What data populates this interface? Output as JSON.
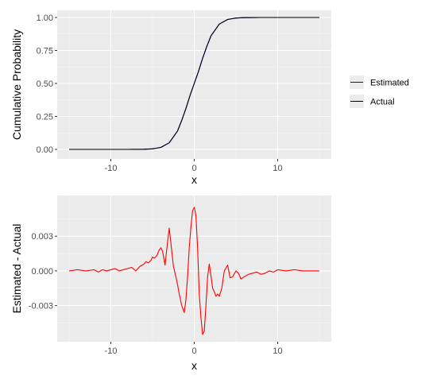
{
  "chart_data": [
    {
      "type": "line",
      "xlabel": "x",
      "ylabel": "Cumulative Probability",
      "xlim": [
        -15,
        15
      ],
      "ylim": [
        0,
        1
      ],
      "xticks": [
        -10,
        0,
        10
      ],
      "xtick_labels": [
        "-10",
        "0",
        "10"
      ],
      "yticks": [
        0,
        0.25,
        0.5,
        0.75,
        1
      ],
      "ytick_labels": [
        "0.00",
        "0.25",
        "0.50",
        "0.75",
        "1.00"
      ],
      "grid": true,
      "legend_position": "right",
      "x": [
        -15,
        -10,
        -8,
        -6,
        -5,
        -4,
        -3,
        -2,
        -1.5,
        -1,
        -0.5,
        0,
        0.5,
        1,
        1.5,
        2,
        3,
        4,
        5,
        6,
        8,
        10,
        15
      ],
      "series": [
        {
          "name": "Estimated",
          "color": "#0000ff",
          "values": [
            0.0,
            0.0,
            0.0,
            0.001,
            0.004,
            0.015,
            0.05,
            0.14,
            0.22,
            0.31,
            0.41,
            0.5,
            0.59,
            0.69,
            0.78,
            0.86,
            0.95,
            0.985,
            0.996,
            0.999,
            1.0,
            1.0,
            1.0
          ]
        },
        {
          "name": "Actual",
          "color": "#000000",
          "values": [
            0.0,
            0.0,
            0.0,
            0.001,
            0.004,
            0.015,
            0.05,
            0.14,
            0.22,
            0.31,
            0.41,
            0.5,
            0.59,
            0.69,
            0.78,
            0.86,
            0.95,
            0.985,
            0.996,
            0.999,
            1.0,
            1.0,
            1.0
          ]
        }
      ]
    },
    {
      "type": "line",
      "xlabel": "x",
      "ylabel": "Estimated - Actual",
      "xlim": [
        -15,
        15
      ],
      "ylim": [
        -0.0055,
        0.0059
      ],
      "xticks": [
        -10,
        0,
        10
      ],
      "xtick_labels": [
        "-10",
        "0",
        "10"
      ],
      "yticks": [
        -0.003,
        0,
        0.003
      ],
      "ytick_labels": [
        "-0.003",
        "0.000",
        "0.003"
      ],
      "grid": true,
      "series": [
        {
          "name": "",
          "color": "#ff0000",
          "x": [
            -15,
            -14,
            -13,
            -12,
            -11.5,
            -11,
            -10.5,
            -10,
            -9.5,
            -9,
            -8.5,
            -8,
            -7.5,
            -7,
            -6.5,
            -6,
            -5.8,
            -5.5,
            -5.2,
            -5,
            -4.8,
            -4.5,
            -4.2,
            -4,
            -3.8,
            -3.5,
            -3.2,
            -3,
            -2.8,
            -2.5,
            -2.2,
            -2,
            -1.8,
            -1.5,
            -1.2,
            -1,
            -0.8,
            -0.6,
            -0.4,
            -0.2,
            0,
            0.2,
            0.4,
            0.6,
            0.8,
            1,
            1.2,
            1.4,
            1.6,
            1.8,
            2,
            2.2,
            2.4,
            2.6,
            2.8,
            3,
            3.3,
            3.6,
            4,
            4.3,
            4.6,
            5,
            5.3,
            5.6,
            6,
            6.5,
            7,
            7.5,
            8,
            8.5,
            9,
            9.5,
            10,
            11,
            12,
            13,
            14,
            15
          ],
          "values": [
            0.0,
            0.0001,
            0.0,
            0.0001,
            -0.0001,
            0.0001,
            0.0,
            0.0001,
            0.0002,
            0.0,
            0.0001,
            0.0002,
            0.0003,
            0.0,
            0.0004,
            0.0006,
            0.0008,
            0.0007,
            0.0009,
            0.0012,
            0.0011,
            0.0013,
            0.0018,
            0.002,
            0.0017,
            0.0005,
            0.0025,
            0.0037,
            0.0024,
            0.0004,
            -0.0005,
            -0.0012,
            -0.002,
            -0.003,
            -0.0036,
            -0.0025,
            -0.0005,
            0.002,
            0.0038,
            0.0052,
            0.0055,
            0.0048,
            0.002,
            -0.002,
            -0.004,
            -0.0055,
            -0.0052,
            -0.003,
            -0.0005,
            0.0006,
            -0.0004,
            -0.0015,
            -0.0018,
            -0.0022,
            -0.002,
            -0.0022,
            -0.0015,
            0.0,
            0.0005,
            -0.0006,
            -0.0005,
            0.0,
            -0.0002,
            -0.0007,
            -0.0005,
            -0.0003,
            -0.0002,
            -0.0001,
            -0.0003,
            -0.0002,
            0.0,
            -0.0001,
            0.0001,
            0.0,
            0.0001,
            0.0,
            0.0,
            0.0
          ]
        }
      ]
    }
  ]
}
